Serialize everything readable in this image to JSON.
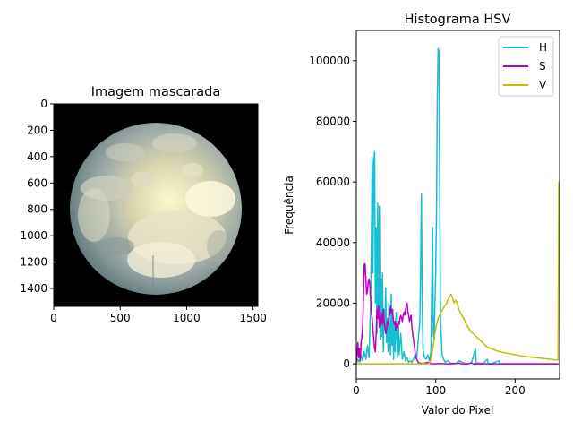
{
  "chart_data": [
    {
      "type": "image",
      "title": "Imagem mascarada",
      "xlim": [
        0,
        1536
      ],
      "ylim": [
        1536,
        0
      ],
      "x_ticks": [
        0,
        500,
        1000,
        1500
      ],
      "y_ticks": [
        0,
        200,
        400,
        600,
        800,
        1000,
        1200,
        1400
      ],
      "content": "masked all-sky camera image (circular fisheye sky with clouds on black background)"
    },
    {
      "type": "line",
      "title": "Histograma HSV",
      "xlabel": "Valor do Pixel",
      "ylabel": "Frequência",
      "xlim": [
        0,
        256
      ],
      "ylim": [
        -5000,
        110000
      ],
      "x_ticks": [
        0,
        100,
        200
      ],
      "y_ticks": [
        0,
        20000,
        40000,
        60000,
        80000,
        100000
      ],
      "legend_position": "upper right",
      "series": [
        {
          "name": "H",
          "color": "#17becf",
          "points": [
            [
              0,
              0
            ],
            [
              2,
              1500
            ],
            [
              4,
              500
            ],
            [
              6,
              3000
            ],
            [
              8,
              1000
            ],
            [
              10,
              4000
            ],
            [
              12,
              1500
            ],
            [
              14,
              6000
            ],
            [
              16,
              2000
            ],
            [
              18,
              20000
            ],
            [
              19,
              40000
            ],
            [
              20,
              68000
            ],
            [
              21,
              30000
            ],
            [
              22,
              66000
            ],
            [
              23,
              70000
            ],
            [
              24,
              20000
            ],
            [
              25,
              45000
            ],
            [
              26,
              10000
            ],
            [
              27,
              53000
            ],
            [
              28,
              15000
            ],
            [
              29,
              52000
            ],
            [
              30,
              8000
            ],
            [
              31,
              28000
            ],
            [
              32,
              9000
            ],
            [
              33,
              30000
            ],
            [
              34,
              4000
            ],
            [
              35,
              18000
            ],
            [
              36,
              12000
            ],
            [
              37,
              25000
            ],
            [
              38,
              7000
            ],
            [
              39,
              15000
            ],
            [
              40,
              4000
            ],
            [
              41,
              20000
            ],
            [
              42,
              11000
            ],
            [
              43,
              3000
            ],
            [
              44,
              23000
            ],
            [
              45,
              6000
            ],
            [
              46,
              18000
            ],
            [
              47,
              1500
            ],
            [
              48,
              13000
            ],
            [
              49,
              4000
            ],
            [
              50,
              17000
            ],
            [
              52,
              2000
            ],
            [
              53,
              14000
            ],
            [
              54,
              3000
            ],
            [
              56,
              10000
            ],
            [
              58,
              1500
            ],
            [
              60,
              4000
            ],
            [
              62,
              1000
            ],
            [
              64,
              2000
            ],
            [
              66,
              500
            ],
            [
              68,
              1000
            ],
            [
              70,
              500
            ],
            [
              72,
              1500
            ],
            [
              74,
              3000
            ],
            [
              76,
              1500
            ],
            [
              78,
              8000
            ],
            [
              80,
              14000
            ],
            [
              81,
              30000
            ],
            [
              82,
              56000
            ],
            [
              83,
              20000
            ],
            [
              84,
              5000
            ],
            [
              86,
              2000
            ],
            [
              88,
              1500
            ],
            [
              90,
              3000
            ],
            [
              92,
              1000
            ],
            [
              94,
              4000
            ],
            [
              96,
              45000
            ],
            [
              97,
              10000
            ],
            [
              98,
              8000
            ],
            [
              99,
              20000
            ],
            [
              100,
              30000
            ],
            [
              101,
              50000
            ],
            [
              102,
              88000
            ],
            [
              103,
              104000
            ],
            [
              104,
              103000
            ],
            [
              105,
              60000
            ],
            [
              106,
              15000
            ],
            [
              108,
              3000
            ],
            [
              110,
              1500
            ],
            [
              112,
              500
            ],
            [
              115,
              1000
            ],
            [
              118,
              300
            ],
            [
              120,
              200
            ],
            [
              125,
              100
            ],
            [
              130,
              1000
            ],
            [
              135,
              200
            ],
            [
              140,
              100
            ],
            [
              145,
              200
            ],
            [
              150,
              5000
            ],
            [
              151,
              300
            ],
            [
              155,
              200
            ],
            [
              160,
              100
            ],
            [
              165,
              1500
            ],
            [
              166,
              100
            ],
            [
              170,
              50
            ],
            [
              180,
              1000
            ],
            [
              181,
              0
            ],
            [
              200,
              0
            ],
            [
              220,
              0
            ],
            [
              240,
              0
            ],
            [
              255,
              0
            ]
          ]
        },
        {
          "name": "S",
          "color": "#bf00bf",
          "points": [
            [
              0,
              0
            ],
            [
              1,
              3000
            ],
            [
              2,
              7000
            ],
            [
              3,
              2000
            ],
            [
              4,
              5000
            ],
            [
              5,
              1000
            ],
            [
              6,
              7000
            ],
            [
              7,
              9000
            ],
            [
              8,
              12000
            ],
            [
              9,
              22000
            ],
            [
              10,
              33000
            ],
            [
              11,
              33000
            ],
            [
              12,
              28000
            ],
            [
              13,
              23000
            ],
            [
              14,
              24000
            ],
            [
              15,
              27000
            ],
            [
              16,
              28000
            ],
            [
              17,
              26000
            ],
            [
              18,
              21000
            ],
            [
              19,
              17000
            ],
            [
              20,
              15000
            ],
            [
              21,
              11000
            ],
            [
              22,
              8000
            ],
            [
              23,
              5000
            ],
            [
              24,
              4000
            ],
            [
              25,
              10000
            ],
            [
              26,
              18000
            ],
            [
              27,
              15000
            ],
            [
              28,
              19000
            ],
            [
              29,
              12000
            ],
            [
              30,
              14000
            ],
            [
              31,
              17000
            ],
            [
              32,
              16000
            ],
            [
              33,
              13000
            ],
            [
              34,
              18000
            ],
            [
              35,
              14000
            ],
            [
              36,
              12000
            ],
            [
              37,
              10000
            ],
            [
              38,
              11000
            ],
            [
              39,
              14000
            ],
            [
              40,
              13000
            ],
            [
              41,
              15000
            ],
            [
              42,
              16000
            ],
            [
              43,
              19000
            ],
            [
              44,
              17000
            ],
            [
              45,
              18000
            ],
            [
              46,
              16000
            ],
            [
              47,
              14000
            ],
            [
              48,
              13000
            ],
            [
              49,
              14000
            ],
            [
              50,
              11000
            ],
            [
              51,
              13000
            ],
            [
              52,
              12000
            ],
            [
              53,
              14000
            ],
            [
              54,
              13000
            ],
            [
              55,
              15000
            ],
            [
              56,
              16000
            ],
            [
              57,
              15000
            ],
            [
              58,
              14000
            ],
            [
              59,
              16000
            ],
            [
              60,
              17000
            ],
            [
              61,
              16000
            ],
            [
              62,
              18000
            ],
            [
              63,
              19000
            ],
            [
              64,
              20000
            ],
            [
              65,
              17000
            ],
            [
              66,
              16000
            ],
            [
              67,
              14000
            ],
            [
              68,
              15000
            ],
            [
              69,
              16000
            ],
            [
              70,
              12000
            ],
            [
              71,
              10000
            ],
            [
              72,
              8000
            ],
            [
              73,
              6000
            ],
            [
              74,
              4000
            ],
            [
              75,
              2000
            ],
            [
              76,
              1500
            ],
            [
              77,
              1000
            ],
            [
              78,
              500
            ],
            [
              80,
              200
            ],
            [
              85,
              100
            ],
            [
              90,
              500
            ],
            [
              92,
              200
            ],
            [
              95,
              0
            ],
            [
              100,
              0
            ],
            [
              105,
              100
            ],
            [
              110,
              0
            ],
            [
              120,
              0
            ],
            [
              130,
              200
            ],
            [
              132,
              0
            ],
            [
              140,
              0
            ],
            [
              145,
              300
            ],
            [
              147,
              0
            ],
            [
              160,
              0
            ],
            [
              180,
              0
            ],
            [
              200,
              0
            ],
            [
              220,
              0
            ],
            [
              240,
              0
            ],
            [
              255,
              0
            ]
          ]
        },
        {
          "name": "V",
          "color": "#bfbf00",
          "points": [
            [
              0,
              0
            ],
            [
              20,
              0
            ],
            [
              40,
              0
            ],
            [
              60,
              0
            ],
            [
              80,
              0
            ],
            [
              90,
              0
            ],
            [
              93,
              500
            ],
            [
              95,
              3000
            ],
            [
              97,
              6000
            ],
            [
              99,
              10000
            ],
            [
              101,
              13000
            ],
            [
              103,
              15000
            ],
            [
              105,
              16000
            ],
            [
              107,
              17000
            ],
            [
              109,
              18000
            ],
            [
              111,
              19000
            ],
            [
              113,
              19500
            ],
            [
              115,
              21000
            ],
            [
              117,
              22000
            ],
            [
              119,
              23000
            ],
            [
              121,
              22000
            ],
            [
              123,
              20000
            ],
            [
              125,
              21000
            ],
            [
              127,
              20000
            ],
            [
              129,
              18000
            ],
            [
              131,
              17000
            ],
            [
              133,
              16000
            ],
            [
              135,
              15000
            ],
            [
              137,
              14000
            ],
            [
              139,
              13000
            ],
            [
              141,
              12000
            ],
            [
              143,
              11000
            ],
            [
              145,
              10500
            ],
            [
              147,
              10000
            ],
            [
              149,
              9500
            ],
            [
              151,
              9000
            ],
            [
              153,
              8500
            ],
            [
              155,
              8000
            ],
            [
              157,
              7500
            ],
            [
              159,
              7000
            ],
            [
              161,
              6500
            ],
            [
              163,
              6000
            ],
            [
              165,
              5500
            ],
            [
              170,
              5000
            ],
            [
              175,
              4500
            ],
            [
              180,
              4000
            ],
            [
              190,
              3500
            ],
            [
              200,
              3000
            ],
            [
              210,
              2500
            ],
            [
              220,
              2200
            ],
            [
              230,
              1900
            ],
            [
              240,
              1600
            ],
            [
              250,
              1300
            ],
            [
              254,
              1200
            ],
            [
              255,
              60000
            ]
          ]
        }
      ]
    }
  ]
}
